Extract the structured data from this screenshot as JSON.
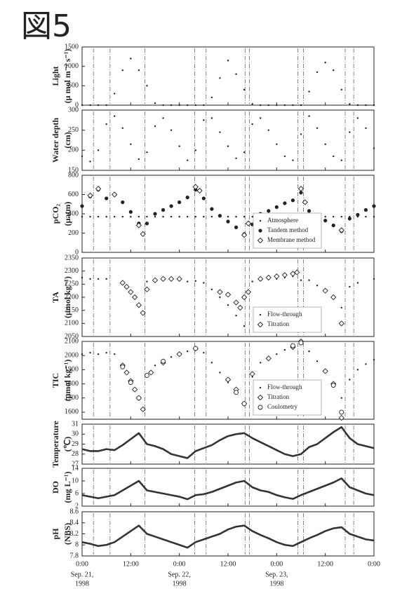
{
  "title": "図5",
  "x_axis": {
    "xlim": [
      0,
      72
    ],
    "xticks": [
      {
        "value": 0,
        "label": "0:00"
      },
      {
        "value": 12,
        "label": "12:00"
      },
      {
        "value": 24,
        "label": "0:00"
      },
      {
        "value": 36,
        "label": "12:00"
      },
      {
        "value": 48,
        "label": "0:00"
      },
      {
        "value": 60,
        "label": "12:00"
      },
      {
        "value": 72,
        "label": "0:00"
      }
    ],
    "date_labels": [
      {
        "value": 0,
        "lines": [
          "Sep. 21,",
          "1998"
        ]
      },
      {
        "value": 24,
        "lines": [
          "Sep. 22,",
          "1998"
        ]
      },
      {
        "value": 48,
        "lines": [
          "Sep. 23,",
          "1998"
        ]
      }
    ],
    "x": [
      0,
      2,
      4,
      6,
      8,
      10,
      12,
      14,
      16,
      18,
      20,
      22,
      24,
      26,
      28,
      30,
      32,
      34,
      36,
      38,
      40,
      42,
      44,
      46,
      48,
      50,
      52,
      54,
      56,
      58,
      60,
      62,
      64,
      66,
      68,
      70,
      72
    ]
  },
  "reference_lines_x": [
    2.8,
    6.9,
    15.5,
    27.8,
    30.6,
    40.2,
    41.3,
    53.2,
    54.6,
    64.9,
    67.0
  ],
  "chart_data": [
    {
      "type": "scatter",
      "ylabel": [
        "Light",
        "(μ mol m⁻² s⁻¹)"
      ],
      "ylim": [
        0,
        1500
      ],
      "yticks": [
        0,
        500,
        1000,
        1500
      ],
      "series": [
        {
          "marker": "dot",
          "color": "#222",
          "values": [
            0,
            0,
            0,
            0,
            300,
            900,
            1200,
            900,
            500,
            50,
            0,
            0,
            0,
            0,
            0,
            0,
            200,
            700,
            1150,
            800,
            400,
            30,
            0,
            0,
            0,
            0,
            0,
            0,
            350,
            850,
            1100,
            900,
            400,
            30,
            0,
            0,
            0
          ]
        }
      ]
    },
    {
      "type": "scatter",
      "ylabel": [
        "Water depth",
        "(cm)"
      ],
      "ylim": [
        150,
        300
      ],
      "yticks": [
        150,
        200,
        250,
        300
      ],
      "series": [
        {
          "marker": "dot",
          "color": "#222",
          "values": [
            185,
            172,
            200,
            265,
            285,
            255,
            215,
            178,
            195,
            260,
            280,
            250,
            210,
            175,
            200,
            275,
            280,
            245,
            210,
            180,
            195,
            265,
            280,
            250,
            215,
            185,
            175,
            240,
            285,
            255,
            215,
            185,
            175,
            245,
            280,
            255,
            205
          ]
        }
      ]
    },
    {
      "type": "scatter",
      "ylabel": [
        "pCO₂",
        "(μatm)"
      ],
      "ylim": [
        0,
        800
      ],
      "yticks": [
        0,
        200,
        400,
        600,
        800
      ],
      "legend": "lower right",
      "series": [
        {
          "name": "Atmosphere",
          "marker": "dot",
          "color": "#222",
          "values": [
            370,
            370,
            370,
            370,
            370,
            370,
            370,
            370,
            370,
            370,
            370,
            370,
            370,
            370,
            370,
            370,
            370,
            370,
            370,
            370,
            370,
            370,
            370,
            370,
            370,
            370,
            370,
            370,
            370,
            370,
            370,
            370,
            370,
            370,
            370,
            370,
            370
          ]
        },
        {
          "name": "Tandem method",
          "marker": "filled",
          "color": "#222",
          "values": [
            480,
            580,
            650,
            560,
            600,
            520,
            420,
            300,
            300,
            400,
            440,
            480,
            520,
            570,
            650,
            560,
            450,
            380,
            320,
            260,
            190,
            290,
            400,
            430,
            470,
            510,
            540,
            620,
            430,
            380,
            330,
            280,
            220,
            350,
            390,
            440,
            480
          ]
        },
        {
          "name": "Membrane method",
          "marker": "diamond",
          "color": "#222",
          "x": [
            2,
            4,
            8,
            14,
            15,
            28,
            29,
            40,
            41,
            54,
            55,
            64
          ],
          "values": [
            590,
            660,
            600,
            280,
            190,
            680,
            640,
            180,
            300,
            660,
            520,
            230
          ]
        }
      ]
    },
    {
      "type": "scatter",
      "ylabel": [
        "TA",
        "(μmol kg⁻¹)"
      ],
      "ylim": [
        2050,
        2350
      ],
      "yticks": [
        2050,
        2100,
        2150,
        2200,
        2250,
        2300,
        2350
      ],
      "legend": "lower right",
      "series": [
        {
          "name": "Flow-through",
          "marker": "dot",
          "color": "#222",
          "values": [
            2275,
            2270,
            2270,
            2270,
            null,
            null,
            null,
            null,
            2260,
            2265,
            2268,
            2270,
            2265,
            2260,
            2262,
            2255,
            2230,
            2200,
            2170,
            2130,
            2090,
            2260,
            2265,
            2268,
            2270,
            2275,
            2280,
            2265,
            2265,
            2245,
            2230,
            2200,
            2160,
            2240,
            2255,
            null,
            2270
          ]
        },
        {
          "name": "Titration",
          "marker": "diamond",
          "color": "#222",
          "x": [
            10,
            11,
            12,
            13,
            14,
            15,
            16,
            18,
            20,
            22,
            24,
            34,
            36,
            38,
            39,
            40,
            41,
            44,
            46,
            48,
            50,
            52,
            53,
            60,
            62,
            64
          ],
          "values": [
            2255,
            2240,
            2220,
            2200,
            2170,
            2140,
            2230,
            2265,
            2270,
            2270,
            2270,
            2220,
            2210,
            2180,
            2160,
            2200,
            2220,
            2270,
            2275,
            2280,
            2285,
            2290,
            2295,
            2225,
            2200,
            2100
          ]
        }
      ]
    },
    {
      "type": "scatter",
      "ylabel": [
        "TIC",
        "(μmol kg⁻¹)"
      ],
      "ylim": [
        1550,
        2100
      ],
      "yticks": [
        1600,
        1700,
        1800,
        1900,
        2000,
        2100
      ],
      "legend": "lower right",
      "series": [
        {
          "name": "Flow-through",
          "marker": "dot",
          "color": "#222",
          "values": [
            2010,
            2020,
            2010,
            2020,
            2010,
            null,
            null,
            null,
            1870,
            1930,
            1960,
            1990,
            2010,
            2030,
            2040,
            2020,
            1950,
            1880,
            1810,
            1740,
            1650,
            1850,
            1950,
            1980,
            2010,
            2040,
            2060,
            2090,
            2030,
            1960,
            1900,
            1810,
            1700,
            1830,
            1900,
            1940,
            1970
          ]
        },
        {
          "name": "Titration",
          "marker": "diamond",
          "color": "#222",
          "x": [
            10,
            11,
            12,
            13,
            14,
            15,
            17,
            20,
            24,
            28,
            36,
            38,
            40,
            42,
            46,
            52,
            54,
            60,
            62,
            64
          ],
          "values": [
            1930,
            1880,
            1820,
            1760,
            1700,
            1620,
            1880,
            1950,
            2010,
            2050,
            1830,
            1760,
            1660,
            1870,
            1980,
            2060,
            2100,
            1890,
            1800,
            1560
          ]
        },
        {
          "name": "Coulometry",
          "marker": "circle",
          "color": "#222",
          "x": [
            10,
            12,
            14,
            16,
            20,
            28,
            38,
            40,
            52,
            54,
            62,
            64
          ],
          "values": [
            1920,
            1810,
            1700,
            1860,
            1960,
            2050,
            1740,
            1660,
            2070,
            2090,
            1790,
            1600
          ]
        }
      ]
    },
    {
      "type": "line",
      "ylabel": [
        "Temperature",
        "(℃)"
      ],
      "ylim": [
        27,
        31
      ],
      "yticks": [
        27,
        28,
        29,
        30,
        31
      ],
      "series": [
        {
          "marker": "line",
          "color": "#333",
          "values": [
            28.5,
            28.3,
            28.3,
            28.5,
            28.4,
            28.9,
            29.5,
            30.1,
            29.0,
            28.8,
            28.5,
            28.0,
            27.8,
            27.6,
            28.3,
            28.6,
            28.9,
            29.4,
            29.8,
            30.0,
            30.1,
            29.6,
            29.2,
            28.8,
            28.4,
            28.0,
            27.8,
            28.0,
            28.7,
            29.0,
            29.6,
            30.2,
            30.7,
            29.6,
            29.0,
            28.8,
            28.6
          ]
        }
      ]
    },
    {
      "type": "line",
      "ylabel": [
        "DO",
        "(mg L⁻¹)"
      ],
      "ylim": [
        2,
        14
      ],
      "yticks": [
        2,
        6,
        10,
        14
      ],
      "series": [
        {
          "marker": "line",
          "color": "#333",
          "values": [
            5.5,
            5.0,
            4.5,
            5.0,
            5.5,
            7.0,
            8.5,
            10.0,
            7.0,
            6.5,
            6.0,
            5.5,
            5.0,
            4.2,
            5.5,
            5.8,
            6.5,
            7.5,
            8.5,
            9.5,
            10.0,
            8.0,
            7.0,
            6.5,
            5.5,
            4.8,
            4.3,
            5.5,
            6.5,
            7.5,
            8.5,
            9.5,
            10.8,
            8.0,
            7.0,
            6.0,
            5.5
          ]
        }
      ]
    },
    {
      "type": "line",
      "ylabel": [
        "pH",
        "(NBS)"
      ],
      "ylim": [
        7.8,
        8.6
      ],
      "yticks": [
        7.8,
        8,
        8.2,
        8.4,
        8.6
      ],
      "series": [
        {
          "marker": "line",
          "color": "#333",
          "values": [
            8.05,
            8.02,
            7.98,
            8.0,
            8.05,
            8.15,
            8.25,
            8.35,
            8.2,
            8.15,
            8.1,
            8.05,
            8.0,
            7.95,
            8.05,
            8.1,
            8.15,
            8.2,
            8.28,
            8.33,
            8.35,
            8.25,
            8.18,
            8.12,
            8.05,
            8.0,
            7.98,
            8.05,
            8.12,
            8.18,
            8.25,
            8.3,
            8.32,
            8.2,
            8.15,
            8.1,
            8.08
          ]
        }
      ]
    }
  ]
}
